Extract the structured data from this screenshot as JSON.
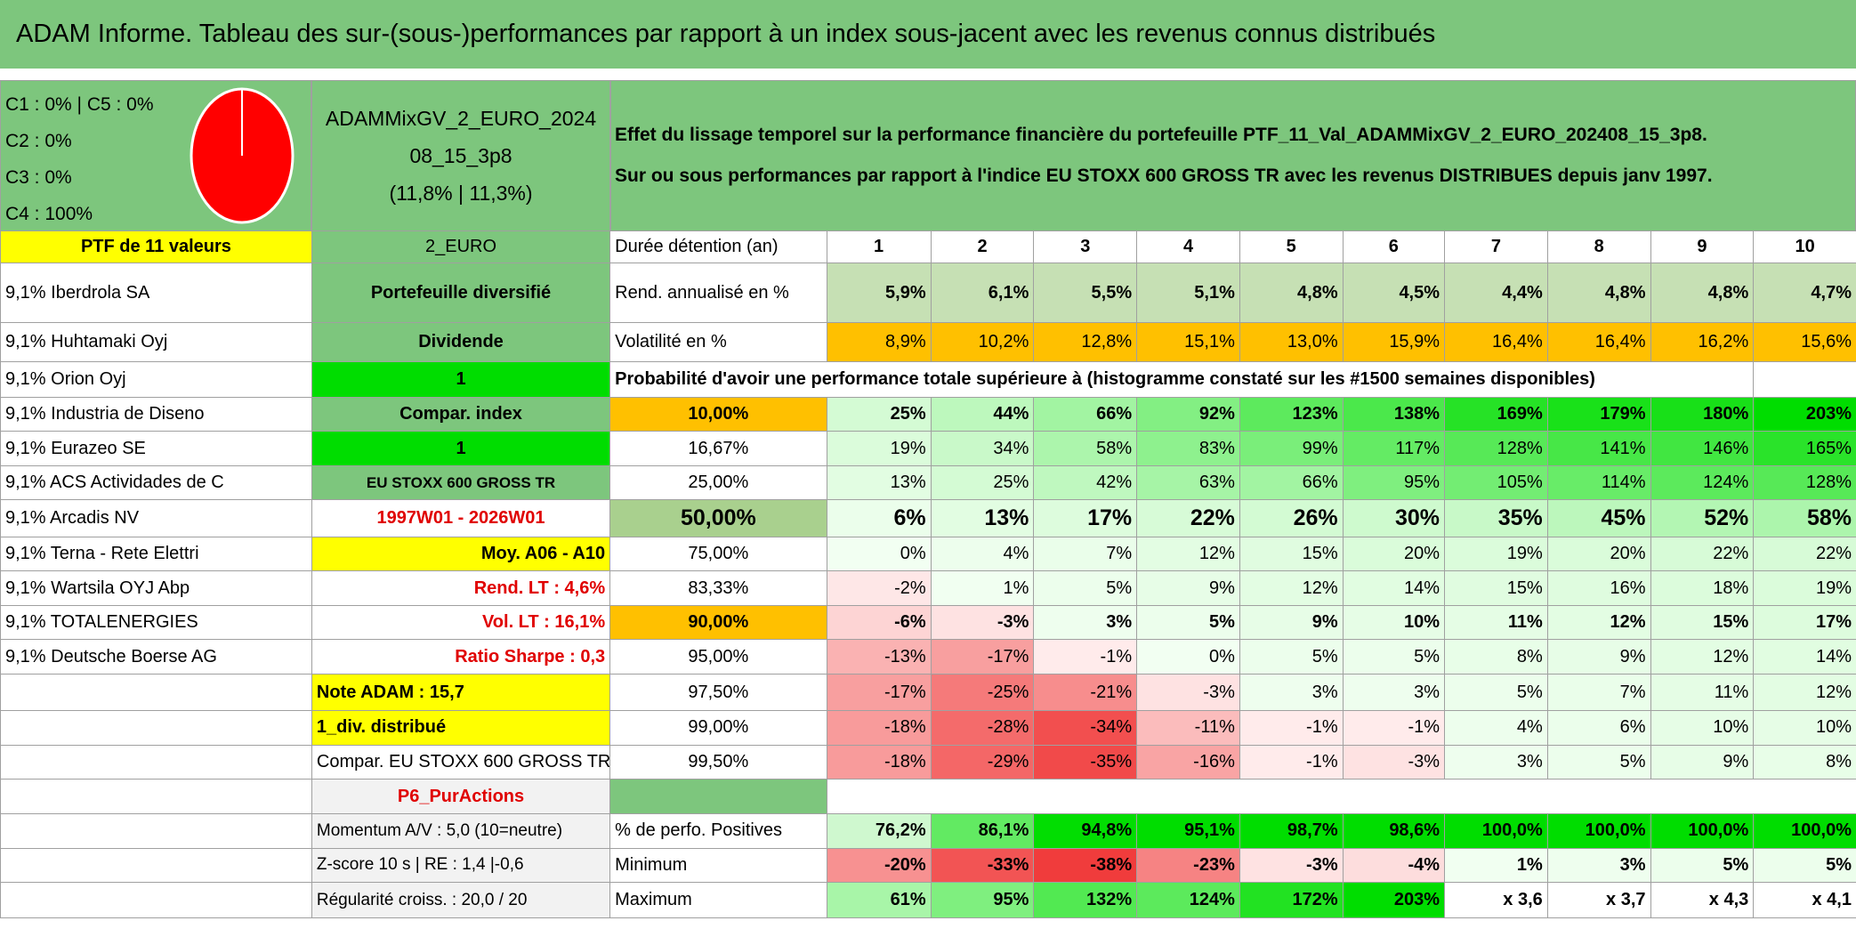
{
  "title": "ADAM Informe. Tableau des sur-(sous-)performances par rapport à un index sous-jacent avec les revenus connus distribués",
  "allocation": [
    "C1 : 0% | C5 : 0%",
    "C2 : 0%",
    "C3 : 0%",
    "C4 : 100%"
  ],
  "portfolio": [
    "ADAMMixGV_2_EURO_2024",
    "08_15_3p8",
    "(11,8% | 11,3%)"
  ],
  "description": [
    "Effet du lissage temporel sur la performance financière du portefeuille PTF_11_Val_ADAMMixGV_2_EURO_202408_15_3p8.",
    "Sur ou sous performances par rapport à l'indice EU STOXX 600 GROSS TR avec les revenus DISTRIBUES depuis janv 1997."
  ],
  "rows": [
    [
      "PTF de 11 valeurs",
      "2_EURO",
      "Durée détention (an)",
      "1",
      "2",
      "3",
      "4",
      "5",
      "6",
      "7",
      "8",
      "9",
      "10"
    ],
    [
      "9,1% Iberdrola SA",
      "Portefeuille diversifié",
      "Rend. annualisé en %",
      "5,9%",
      "6,1%",
      "5,5%",
      "5,1%",
      "4,8%",
      "4,5%",
      "4,4%",
      "4,8%",
      "4,8%",
      "4,7%"
    ],
    [
      "9,1% Huhtamaki Oyj",
      "Dividende",
      "Volatilité en %",
      "8,9%",
      "10,2%",
      "12,8%",
      "15,1%",
      "13,0%",
      "15,9%",
      "16,4%",
      "16,4%",
      "16,2%",
      "15,6%"
    ],
    [
      "9,1% Orion Oyj",
      "1",
      "Probabilité d'avoir une performance totale supérieure à (histogramme constaté sur les #1500 semaines disponibles)"
    ],
    [
      "9,1% Industria de Diseno",
      "Compar. index",
      "10,00%",
      "25%",
      "44%",
      "66%",
      "92%",
      "123%",
      "138%",
      "169%",
      "179%",
      "180%",
      "203%"
    ],
    [
      "9,1% Eurazeo SE",
      "1",
      "16,67%",
      "19%",
      "34%",
      "58%",
      "83%",
      "99%",
      "117%",
      "128%",
      "141%",
      "146%",
      "165%"
    ],
    [
      "9,1% ACS Actividades de C",
      "EU STOXX 600 GROSS TR",
      "25,00%",
      "13%",
      "25%",
      "42%",
      "63%",
      "66%",
      "95%",
      "105%",
      "114%",
      "124%",
      "128%"
    ],
    [
      "9,1% Arcadis NV",
      "1997W01 - 2026W01",
      "50,00%",
      "6%",
      "13%",
      "17%",
      "22%",
      "26%",
      "30%",
      "35%",
      "45%",
      "52%",
      "58%"
    ],
    [
      "9,1% Terna - Rete Elettri",
      "Moy. A06 - A10",
      "75,00%",
      "0%",
      "4%",
      "7%",
      "12%",
      "15%",
      "20%",
      "19%",
      "20%",
      "22%",
      "22%"
    ],
    [
      "9,1% Wartsila OYJ Abp",
      "Rend. LT : 4,6%",
      "83,33%",
      "-2%",
      "1%",
      "5%",
      "9%",
      "12%",
      "14%",
      "15%",
      "16%",
      "18%",
      "19%"
    ],
    [
      "9,1% TOTALENERGIES",
      "Vol. LT : 16,1%",
      "90,00%",
      "-6%",
      "-3%",
      "3%",
      "5%",
      "9%",
      "10%",
      "11%",
      "12%",
      "15%",
      "17%"
    ],
    [
      "9,1% Deutsche Boerse AG",
      "Ratio Sharpe : 0,3",
      "95,00%",
      "-13%",
      "-17%",
      "-1%",
      "0%",
      "5%",
      "5%",
      "8%",
      "9%",
      "12%",
      "14%"
    ],
    [
      "Note ADAM : 15,7",
      "97,50%",
      "-17%",
      "-25%",
      "-21%",
      "-3%",
      "3%",
      "3%",
      "5%",
      "7%",
      "11%",
      "12%"
    ],
    [
      "1_div. distribué",
      "99,00%",
      "-18%",
      "-28%",
      "-34%",
      "-11%",
      "-1%",
      "-1%",
      "4%",
      "6%",
      "10%",
      "10%"
    ],
    [
      "Compar. EU STOXX 600 GROSS TR",
      "99,50%",
      "-18%",
      "-29%",
      "-35%",
      "-16%",
      "-1%",
      "-3%",
      "3%",
      "5%",
      "9%",
      "8%"
    ],
    [
      "P6_PurActions"
    ],
    [
      "Momentum A/V : 5,0 (10=neutre)",
      "% de perfo. Positives",
      "76,2%",
      "86,1%",
      "94,8%",
      "95,1%",
      "98,7%",
      "98,6%",
      "100,0%",
      "100,0%",
      "100,0%",
      "100,0%"
    ],
    [
      "Z-score 10 s | RE : 1,4 |-0,6",
      "Minimum",
      "-20%",
      "-33%",
      "-38%",
      "-23%",
      "-3%",
      "-4%",
      "1%",
      "3%",
      "5%",
      "5%"
    ],
    [
      "Régularité croiss. : 20,0 / 20",
      "Maximum",
      "61%",
      "95%",
      "132%",
      "124%",
      "172%",
      "203%",
      "x 3,6",
      "x 3,7",
      "x 4,3",
      "x 4,1"
    ]
  ]
}
